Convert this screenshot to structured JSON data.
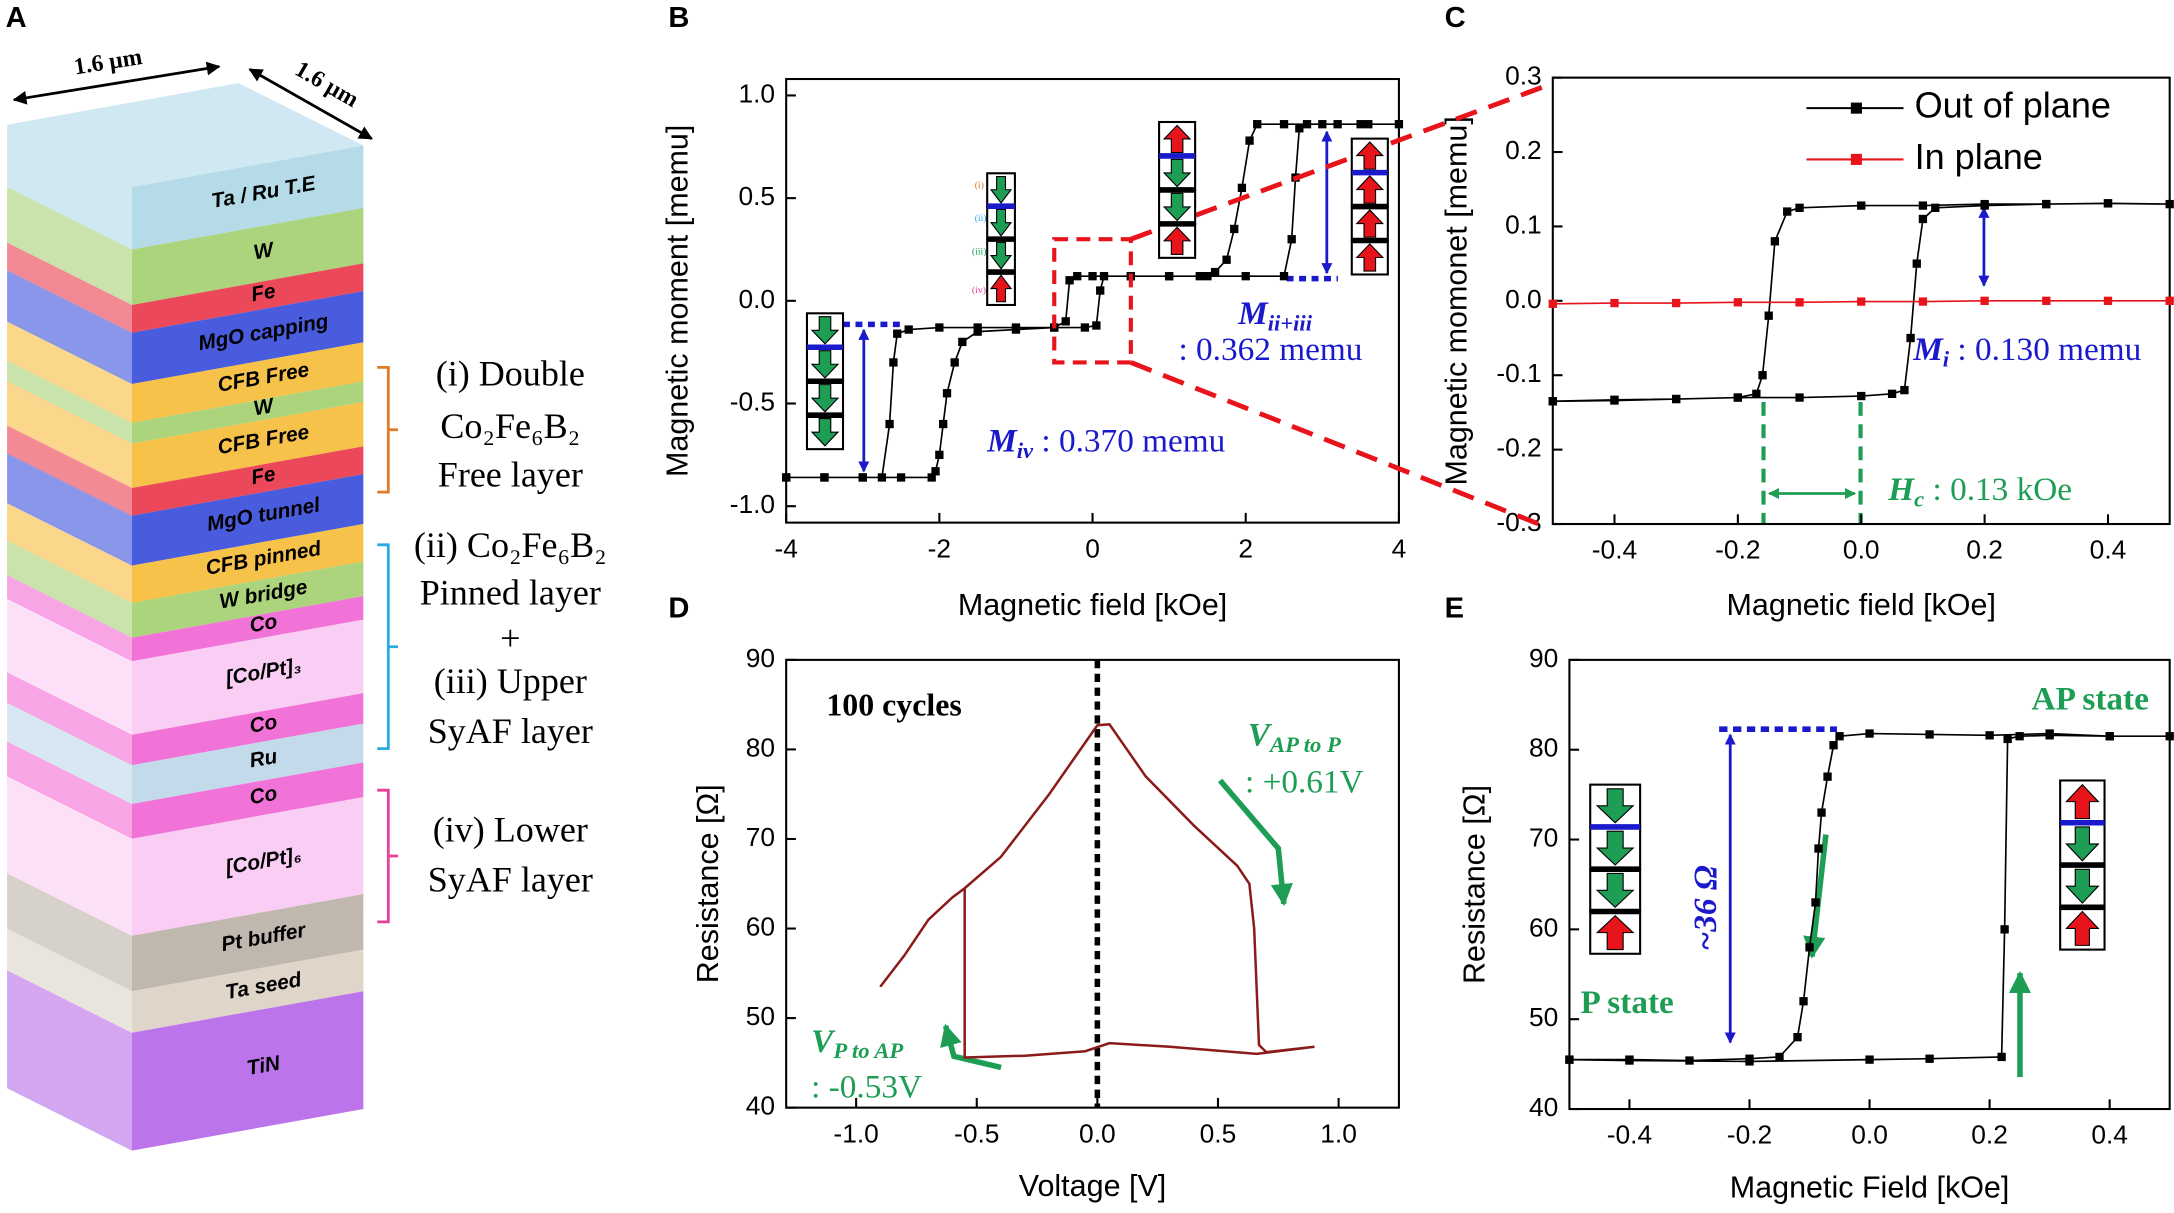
{
  "panel_labels": [
    "A",
    "B",
    "C",
    "D",
    "E"
  ],
  "stack_diagram": {
    "dimensions": [
      "1.6 µm",
      "1.6 µm"
    ],
    "layers": [
      {
        "name": "Ta / Ru T.E",
        "color": "#a8d5e5"
      },
      {
        "name": "W",
        "color": "#9ccc65"
      },
      {
        "name": "Fe",
        "color": "#e8283c"
      },
      {
        "name": "MgO capping",
        "color": "#2a3fd8"
      },
      {
        "name": "CFB Free",
        "color": "#f5b72a"
      },
      {
        "name": "W",
        "color": "#9ccc65"
      },
      {
        "name": "CFB Free",
        "color": "#f5b72a"
      },
      {
        "name": "Fe",
        "color": "#e8283c"
      },
      {
        "name": "MgO tunnel",
        "color": "#2a3fd8"
      },
      {
        "name": "CFB pinned",
        "color": "#f5b72a"
      },
      {
        "name": "W bridge",
        "color": "#9ccc65"
      },
      {
        "name": "Co",
        "color": "#f05bd0"
      },
      {
        "name": "[Co/Pt]₃",
        "color": "#f9c6f2"
      },
      {
        "name": "Co",
        "color": "#f05bd0"
      },
      {
        "name": "Ru",
        "color": "#b9d3e8"
      },
      {
        "name": "Co",
        "color": "#f05bd0"
      },
      {
        "name": "[Co/Pt]₆",
        "color": "#f9c6f2"
      },
      {
        "name": "Pt buffer",
        "color": "#b5aba0"
      },
      {
        "name": "Ta seed",
        "color": "#d9cfc0"
      },
      {
        "name": "TiN",
        "color": "#b05ce8"
      }
    ],
    "groups": [
      {
        "color": "#e07b24",
        "lines": [
          {
            "text": "(i) Double",
            "color": "#e07b24"
          },
          {
            "text": "Co₂Fe₆B₂",
            "color": "#e07b24"
          },
          {
            "text": "Free layer",
            "color": "#e07b24"
          }
        ]
      },
      {
        "color": "#29abe2",
        "lines": [
          {
            "text": "(ii) Co₂Fe₆B₂",
            "color": "#29abe2"
          },
          {
            "text": "Pinned layer",
            "color": "#29abe2"
          },
          {
            "text": "+",
            "color": "#000000"
          },
          {
            "text": "(iii) Upper",
            "color": "#1e9e55"
          },
          {
            "text": "SyAF layer",
            "color": "#1e9e55"
          }
        ]
      },
      {
        "color": "#e83e9e",
        "lines": [
          {
            "text": "(iv) Lower",
            "color": "#e83e9e"
          },
          {
            "text": "SyAF layer",
            "color": "#e83e9e"
          }
        ]
      }
    ]
  },
  "chart_data": [
    {
      "type": "line",
      "xlabel": "Magnetic field [kOe]",
      "ylabel": "Magnetic moment [memu]",
      "xlim": [
        -4,
        4
      ],
      "ylim": [
        -1.08,
        1.08
      ],
      "xticks": [
        -4,
        -2,
        0,
        2,
        4
      ],
      "yticks": [
        {
          "value": 1.0,
          "label": "1.0"
        },
        0.5,
        {
          "value": 0.0,
          "label": "0.0"
        },
        -0.5,
        {
          "value": -1.0,
          "label": "-1.0"
        }
      ],
      "series": [
        {
          "color": "#000000",
          "marker": true,
          "x": [
            -4,
            -3.5,
            -3,
            -2.75,
            -2.65,
            -2.6,
            -2.55,
            -2.4,
            -2,
            -1.5,
            -1,
            -0.5,
            -0.1,
            0.05,
            0.1,
            0.15,
            0.5,
            1,
            1.5,
            2,
            2.5,
            2.6,
            2.65,
            2.7,
            2.8,
            3.2,
            3.6,
            4,
            3.5,
            3,
            2.5,
            2.15,
            2.05,
            1.95,
            1.85,
            1.75,
            1.6,
            1.4,
            1,
            0.5,
            0,
            -0.2,
            -0.3,
            -0.35,
            -0.5,
            -1,
            -1.5,
            -1.7,
            -1.8,
            -1.9,
            -1.95,
            -2.0,
            -2.05,
            -2.1,
            -2.5,
            -3,
            -3.5,
            -4
          ],
          "values": [
            -0.86,
            -0.86,
            -0.86,
            -0.86,
            -0.6,
            -0.3,
            -0.16,
            -0.14,
            -0.13,
            -0.13,
            -0.13,
            -0.13,
            -0.13,
            -0.12,
            0.05,
            0.12,
            0.12,
            0.12,
            0.12,
            0.12,
            0.12,
            0.3,
            0.6,
            0.84,
            0.86,
            0.86,
            0.86,
            0.86,
            0.86,
            0.86,
            0.86,
            0.86,
            0.78,
            0.55,
            0.35,
            0.2,
            0.14,
            0.12,
            0.12,
            0.12,
            0.12,
            0.12,
            0.1,
            -0.1,
            -0.13,
            -0.14,
            -0.15,
            -0.2,
            -0.3,
            -0.45,
            -0.6,
            -0.75,
            -0.83,
            -0.86,
            -0.86,
            -0.86,
            -0.86,
            -0.86
          ]
        }
      ],
      "annotations": [
        {
          "text": "M",
          "sub": "ii+iii",
          "color": "#1a1acc"
        },
        {
          "text": ": 0.362 memu",
          "color": "#1a1acc"
        },
        {
          "text": "M",
          "sub": "iv",
          "rest": " : 0.370 memu",
          "color": "#1a1acc"
        },
        {
          "text": "(i)",
          "color": "#e07b24"
        },
        {
          "text": "(ii)",
          "color": "#29abe2"
        },
        {
          "text": "(iii)",
          "color": "#1e9e55"
        },
        {
          "text": "(iv)",
          "color": "#e83e9e"
        }
      ]
    },
    {
      "type": "line",
      "xlabel": "Magnetic field [kOe]",
      "ylabel": "Magnetic momonet [memu]",
      "xlim": [
        -0.5,
        0.5
      ],
      "ylim": [
        -0.3,
        0.3
      ],
      "xticks": [
        -0.4,
        -0.2,
        {
          "value": 0.0,
          "label": "0.0"
        },
        0.2,
        0.4
      ],
      "yticks": [
        0.3,
        0.2,
        0.1,
        {
          "value": 0.0,
          "label": "0.0"
        },
        -0.1,
        -0.2,
        -0.3
      ],
      "legend": "upper right",
      "series": [
        {
          "name": "Out of plane",
          "color": "#000000",
          "marker": true,
          "x": [
            -0.5,
            -0.4,
            -0.3,
            -0.2,
            -0.1,
            0,
            0.05,
            0.07,
            0.08,
            0.09,
            0.1,
            0.12,
            0.2,
            0.3,
            0.4,
            0.5,
            0.4,
            0.3,
            0.2,
            0.1,
            0,
            -0.1,
            -0.12,
            -0.14,
            -0.15,
            -0.16,
            -0.17,
            -0.2,
            -0.3,
            -0.4,
            -0.5
          ],
          "values": [
            -0.135,
            -0.133,
            -0.132,
            -0.13,
            -0.13,
            -0.128,
            -0.125,
            -0.12,
            -0.05,
            0.05,
            0.11,
            0.125,
            0.128,
            0.13,
            0.131,
            0.13,
            0.131,
            0.13,
            0.13,
            0.128,
            0.128,
            0.125,
            0.12,
            0.08,
            -0.02,
            -0.1,
            -0.125,
            -0.13,
            -0.132,
            -0.134,
            -0.135
          ]
        },
        {
          "name": "In plane",
          "color": "#e8141c",
          "marker": true,
          "x": [
            -0.5,
            -0.4,
            -0.3,
            -0.2,
            -0.1,
            0,
            0.1,
            0.2,
            0.3,
            0.4,
            0.5
          ],
          "values": [
            -0.004,
            -0.003,
            -0.003,
            -0.002,
            -0.002,
            -0.001,
            -0.001,
            0,
            0,
            0,
            0
          ]
        }
      ],
      "annotations": [
        {
          "text": "M",
          "sub": "i",
          "rest": " : 0.130 memu",
          "color": "#1a1acc"
        },
        {
          "text": "H",
          "sub": "c",
          "rest": " : 0.13 kOe",
          "color": "#1e9e55"
        }
      ]
    },
    {
      "type": "line",
      "xlabel": "Voltage [V]",
      "ylabel": "Resistance [Ω]",
      "xlim": [
        -1.29,
        1.25
      ],
      "ylim": [
        40,
        90
      ],
      "xticks": [
        {
          "value": -1.0,
          "label": "-1.0"
        },
        -0.5,
        {
          "value": 0.0,
          "label": "0.0"
        },
        0.5,
        {
          "value": 1.0,
          "label": "1.0"
        }
      ],
      "yticks": [
        90,
        80,
        70,
        60,
        50,
        40
      ],
      "vline": 0,
      "series": [
        {
          "color": "#8b1a1a",
          "marker": false,
          "x": [
            -0.9,
            -0.8,
            -0.7,
            -0.6,
            -0.55,
            -0.4,
            -0.2,
            0,
            0.05,
            0.2,
            0.4,
            0.58,
            0.63,
            0.65,
            0.67,
            0.7,
            0.9,
            0.66,
            0.3,
            0.05,
            -0.05,
            -0.3,
            -0.55,
            -0.55
          ],
          "values": [
            53.5,
            57,
            61,
            63.5,
            64.5,
            68,
            75,
            82.7,
            82.8,
            77,
            71.5,
            67,
            65,
            60,
            47,
            46.2,
            46.8,
            46.0,
            46.8,
            47.2,
            46.3,
            45.8,
            45.6,
            64.5
          ]
        }
      ],
      "annotations": [
        {
          "text": "100 cycles",
          "color": "#000000"
        },
        {
          "text": "V",
          "sub": "AP to P",
          "color": "#1e9e55"
        },
        {
          "text": ": +0.61V",
          "color": "#1e9e55"
        },
        {
          "text": "V",
          "sub": "P to AP",
          "color": "#1e9e55"
        },
        {
          "text": ": -0.53V",
          "color": "#1e9e55"
        }
      ]
    },
    {
      "type": "line",
      "xlabel": "Magnetic Field [kOe]",
      "ylabel": "Resistance [Ω]",
      "xlim": [
        -0.5,
        0.5
      ],
      "ylim": [
        40,
        90
      ],
      "xticks": [
        -0.4,
        -0.2,
        {
          "value": 0.0,
          "label": "0.0"
        },
        0.2,
        0.4
      ],
      "yticks": [
        90,
        80,
        70,
        60,
        50,
        40
      ],
      "series": [
        {
          "color": "#000000",
          "marker": true,
          "x": [
            -0.5,
            -0.4,
            -0.3,
            -0.2,
            -0.15,
            -0.12,
            -0.11,
            -0.1,
            -0.09,
            -0.085,
            -0.08,
            -0.07,
            -0.06,
            -0.05,
            0,
            0.1,
            0.2,
            0.3,
            0.4,
            0.5,
            0.4,
            0.3,
            0.25,
            0.23,
            0.225,
            0.22,
            0.1,
            0,
            -0.2,
            -0.4,
            -0.5
          ],
          "values": [
            45.5,
            45.5,
            45.4,
            45.6,
            45.8,
            48,
            52,
            58,
            63,
            69,
            73,
            77,
            80.5,
            81.5,
            81.8,
            81.7,
            81.6,
            81.8,
            81.5,
            81.5,
            81.5,
            81.6,
            81.5,
            81.2,
            60,
            45.8,
            45.6,
            45.5,
            45.3,
            45.4,
            45.5
          ]
        }
      ],
      "annotations": [
        {
          "text": "AP state",
          "color": "#1e9e55"
        },
        {
          "text": "P state",
          "color": "#1e9e55"
        },
        {
          "text": "~36 Ω",
          "color": "#1a1acc"
        }
      ]
    }
  ]
}
